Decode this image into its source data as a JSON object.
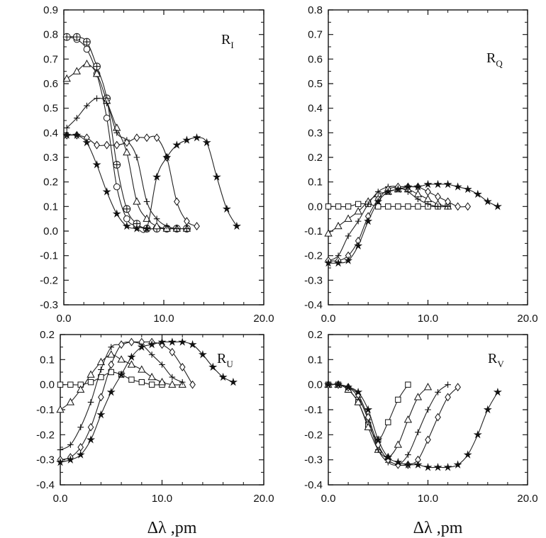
{
  "chart_data": [
    {
      "type": "line",
      "panel": "top-left",
      "label": "R",
      "label_sub": "I",
      "xlim": [
        0,
        20
      ],
      "ylim": [
        -0.3,
        0.9
      ],
      "xticks": [
        "0.0",
        "10.0",
        "20.0"
      ],
      "yticks": [
        "0.9",
        "0.8",
        "0.7",
        "0.6",
        "0.5",
        "0.4",
        "0.3",
        "0.2",
        "0.1",
        "0.0",
        "-0.1",
        "-0.2",
        "-0.3"
      ],
      "xlabel": "",
      "series": [
        {
          "name": "circle",
          "marker": "circle",
          "x": [
            0.3,
            1.3,
            2.3,
            3.3,
            4.3,
            5.3,
            6.3,
            7.3,
            8.3,
            9.3,
            10.3,
            11.3,
            12.3
          ],
          "y": [
            0.79,
            0.78,
            0.74,
            0.64,
            0.46,
            0.18,
            0.05,
            0.02,
            0.01,
            0.01,
            0.01,
            0.01,
            0.01
          ]
        },
        {
          "name": "crossed-circle",
          "marker": "crossed-circle",
          "x": [
            0.3,
            1.3,
            2.3,
            3.3,
            4.3,
            5.3,
            6.3,
            7.3,
            8.3,
            9.3,
            10.3,
            11.3,
            12.3
          ],
          "y": [
            0.79,
            0.79,
            0.77,
            0.67,
            0.54,
            0.27,
            0.09,
            0.03,
            0.01,
            0.01,
            0.01,
            0.01,
            0.01
          ]
        },
        {
          "name": "triangle",
          "marker": "triangle",
          "x": [
            0.3,
            1.3,
            2.3,
            3.3,
            4.3,
            5.3,
            6.3,
            7.3,
            8.3,
            9.3,
            10.3,
            11.3,
            12.3
          ],
          "y": [
            0.62,
            0.65,
            0.68,
            0.64,
            0.53,
            0.42,
            0.32,
            0.12,
            0.05,
            0.02,
            0.01,
            0.01,
            0.01
          ]
        },
        {
          "name": "plus",
          "marker": "plus",
          "x": [
            0.3,
            1.3,
            2.3,
            3.3,
            4.3,
            5.3,
            6.3,
            7.3,
            8.3,
            9.3,
            10.3,
            11.3,
            12.3
          ],
          "y": [
            0.42,
            0.46,
            0.51,
            0.54,
            0.52,
            0.4,
            0.37,
            0.3,
            0.12,
            0.05,
            0.02,
            0.01,
            0.01
          ]
        },
        {
          "name": "diamond",
          "marker": "diamond",
          "x": [
            0.3,
            1.3,
            2.3,
            3.3,
            4.3,
            5.3,
            6.3,
            7.3,
            8.3,
            9.3,
            10.3,
            11.3,
            12.3,
            13.3
          ],
          "y": [
            0.39,
            0.39,
            0.38,
            0.35,
            0.35,
            0.35,
            0.36,
            0.38,
            0.38,
            0.38,
            0.3,
            0.12,
            0.04,
            0.02
          ]
        },
        {
          "name": "star",
          "marker": "star",
          "x": [
            0.3,
            1.3,
            2.3,
            3.3,
            4.3,
            5.3,
            6.3,
            7.3,
            8.3,
            9.3,
            10.3,
            11.3,
            12.3,
            13.3,
            14.3,
            15.3,
            16.3,
            17.3
          ],
          "y": [
            0.39,
            0.39,
            0.36,
            0.27,
            0.16,
            0.07,
            0.02,
            0.01,
            0.01,
            0.22,
            0.3,
            0.35,
            0.37,
            0.38,
            0.36,
            0.22,
            0.09,
            0.02
          ]
        }
      ]
    },
    {
      "type": "line",
      "panel": "top-right",
      "label": "R",
      "label_sub": "Q",
      "xlim": [
        0,
        20
      ],
      "ylim": [
        -0.4,
        0.8
      ],
      "xticks": [
        "0.0",
        "10.0",
        "20.0"
      ],
      "yticks": [
        "0.8",
        "0.7",
        "0.6",
        "0.5",
        "0.4",
        "0.3",
        "0.2",
        "0.1",
        "0.0",
        "-0.1",
        "-0.2",
        "-0.3",
        "-0.4"
      ],
      "xlabel": "",
      "series": [
        {
          "name": "square",
          "marker": "square",
          "x": [
            0,
            1,
            2,
            3,
            4,
            5,
            6,
            7,
            8,
            9,
            10,
            11,
            12
          ],
          "y": [
            0.0,
            0.0,
            0.0,
            0.01,
            0.01,
            0.0,
            0.0,
            0.0,
            0.0,
            0.0,
            0.0,
            0.0,
            0.0
          ]
        },
        {
          "name": "triangle",
          "marker": "triangle",
          "x": [
            0,
            1,
            2,
            3,
            4,
            5,
            6,
            7,
            8,
            9,
            10,
            11,
            12
          ],
          "y": [
            -0.11,
            -0.08,
            -0.05,
            -0.02,
            0.02,
            0.05,
            0.06,
            0.07,
            0.07,
            0.05,
            0.03,
            0.01,
            0.0
          ]
        },
        {
          "name": "plus",
          "marker": "plus",
          "x": [
            0,
            1,
            2,
            3,
            4,
            5,
            6,
            7,
            8,
            9,
            10,
            11,
            12
          ],
          "y": [
            -0.22,
            -0.2,
            -0.12,
            -0.06,
            0.01,
            0.06,
            0.08,
            0.08,
            0.06,
            0.03,
            0.01,
            0.0,
            0.0
          ]
        },
        {
          "name": "diamond",
          "marker": "diamond",
          "x": [
            0,
            1,
            2,
            3,
            4,
            5,
            6,
            7,
            8,
            9,
            10,
            11,
            12,
            13,
            14
          ],
          "y": [
            -0.22,
            -0.22,
            -0.2,
            -0.14,
            -0.04,
            0.03,
            0.07,
            0.08,
            0.08,
            0.08,
            0.06,
            0.04,
            0.02,
            0.0,
            0.0
          ]
        },
        {
          "name": "star",
          "marker": "star",
          "x": [
            0,
            1,
            2,
            3,
            4,
            5,
            6,
            7,
            8,
            9,
            10,
            11,
            12,
            13,
            14,
            15,
            16,
            17
          ],
          "y": [
            -0.23,
            -0.23,
            -0.22,
            -0.16,
            -0.06,
            0.02,
            0.06,
            0.07,
            0.08,
            0.08,
            0.09,
            0.09,
            0.09,
            0.08,
            0.07,
            0.05,
            0.02,
            0.0
          ]
        }
      ]
    },
    {
      "type": "line",
      "panel": "bottom-left",
      "label": "R",
      "label_sub": "U",
      "xlim": [
        0,
        20
      ],
      "ylim": [
        -0.4,
        0.2
      ],
      "xticks": [
        "0.0",
        "10.0",
        "20.0"
      ],
      "yticks": [
        "0.2",
        "0.1",
        "0.0",
        "-0.1",
        "-0.2",
        "-0.3",
        "-0.4"
      ],
      "xlabel": "Δλ ,pm",
      "series": [
        {
          "name": "square",
          "marker": "square",
          "x": [
            0,
            1,
            2,
            3,
            4,
            5,
            6,
            7,
            8,
            9,
            10
          ],
          "y": [
            0.0,
            0.0,
            0.0,
            0.01,
            0.03,
            0.05,
            0.04,
            0.02,
            0.01,
            0.0,
            0.0
          ]
        },
        {
          "name": "triangle",
          "marker": "triangle",
          "x": [
            0,
            1,
            2,
            3,
            4,
            5,
            6,
            7,
            8,
            9,
            10,
            11,
            12
          ],
          "y": [
            -0.1,
            -0.07,
            -0.02,
            0.04,
            0.09,
            0.12,
            0.1,
            0.08,
            0.06,
            0.03,
            0.01,
            0.0,
            0.0
          ]
        },
        {
          "name": "plus",
          "marker": "plus",
          "x": [
            0,
            1,
            2,
            3,
            4,
            5,
            6,
            7,
            8,
            9,
            10,
            11,
            12
          ],
          "y": [
            -0.26,
            -0.24,
            -0.17,
            -0.07,
            0.06,
            0.15,
            0.16,
            0.17,
            0.16,
            0.12,
            0.08,
            0.03,
            0.01
          ]
        },
        {
          "name": "diamond",
          "marker": "diamond",
          "x": [
            0,
            1,
            2,
            3,
            4,
            5,
            6,
            7,
            8,
            9,
            10,
            11,
            12,
            13
          ],
          "y": [
            -0.3,
            -0.29,
            -0.25,
            -0.17,
            -0.05,
            0.08,
            0.16,
            0.17,
            0.17,
            0.17,
            0.16,
            0.13,
            0.07,
            0.0
          ]
        },
        {
          "name": "star",
          "marker": "star",
          "x": [
            0,
            1,
            2,
            3,
            4,
            5,
            6,
            7,
            8,
            9,
            10,
            11,
            12,
            13,
            14,
            15,
            16,
            17
          ],
          "y": [
            -0.31,
            -0.3,
            -0.28,
            -0.22,
            -0.12,
            -0.03,
            0.04,
            0.11,
            0.15,
            0.16,
            0.17,
            0.17,
            0.17,
            0.16,
            0.12,
            0.07,
            0.03,
            0.01
          ]
        }
      ]
    },
    {
      "type": "line",
      "panel": "bottom-right",
      "label": "R",
      "label_sub": "V",
      "xlim": [
        0,
        20
      ],
      "ylim": [
        -0.4,
        0.2
      ],
      "xticks": [
        "0.0",
        "10.0",
        "20.0"
      ],
      "yticks": [
        "0.2",
        "0.1",
        "0.0",
        "-0.1",
        "-0.2",
        "-0.3",
        "-0.4"
      ],
      "xlabel": "Δλ ,pm",
      "series": [
        {
          "name": "square",
          "marker": "square",
          "x": [
            0,
            1,
            2,
            3,
            4,
            5,
            6,
            7,
            8
          ],
          "y": [
            0.0,
            0.0,
            -0.02,
            -0.07,
            -0.16,
            -0.22,
            -0.15,
            -0.06,
            0.0
          ]
        },
        {
          "name": "triangle",
          "marker": "triangle",
          "x": [
            0,
            1,
            2,
            3,
            4,
            5,
            6,
            7,
            8,
            9,
            10
          ],
          "y": [
            0.0,
            0.0,
            -0.02,
            -0.07,
            -0.17,
            -0.26,
            -0.29,
            -0.24,
            -0.14,
            -0.05,
            -0.01
          ]
        },
        {
          "name": "plus",
          "marker": "plus",
          "x": [
            0,
            1,
            2,
            3,
            4,
            5,
            6,
            7,
            8,
            9,
            10,
            11,
            12
          ],
          "y": [
            0.0,
            0.0,
            -0.01,
            -0.05,
            -0.14,
            -0.26,
            -0.31,
            -0.32,
            -0.28,
            -0.19,
            -0.1,
            -0.03,
            0.0
          ]
        },
        {
          "name": "diamond",
          "marker": "diamond",
          "x": [
            0,
            1,
            2,
            3,
            4,
            5,
            6,
            7,
            8,
            9,
            10,
            11,
            12,
            13
          ],
          "y": [
            0.0,
            0.0,
            -0.01,
            -0.04,
            -0.13,
            -0.24,
            -0.3,
            -0.32,
            -0.32,
            -0.3,
            -0.22,
            -0.13,
            -0.05,
            -0.01
          ]
        },
        {
          "name": "star",
          "marker": "star",
          "x": [
            0,
            1,
            2,
            3,
            4,
            5,
            6,
            7,
            8,
            9,
            10,
            11,
            12,
            13,
            14,
            15,
            16,
            17
          ],
          "y": [
            0.0,
            0.0,
            -0.01,
            -0.03,
            -0.1,
            -0.22,
            -0.29,
            -0.31,
            -0.32,
            -0.32,
            -0.33,
            -0.33,
            -0.33,
            -0.32,
            -0.28,
            -0.2,
            -0.1,
            -0.03
          ]
        }
      ]
    }
  ]
}
